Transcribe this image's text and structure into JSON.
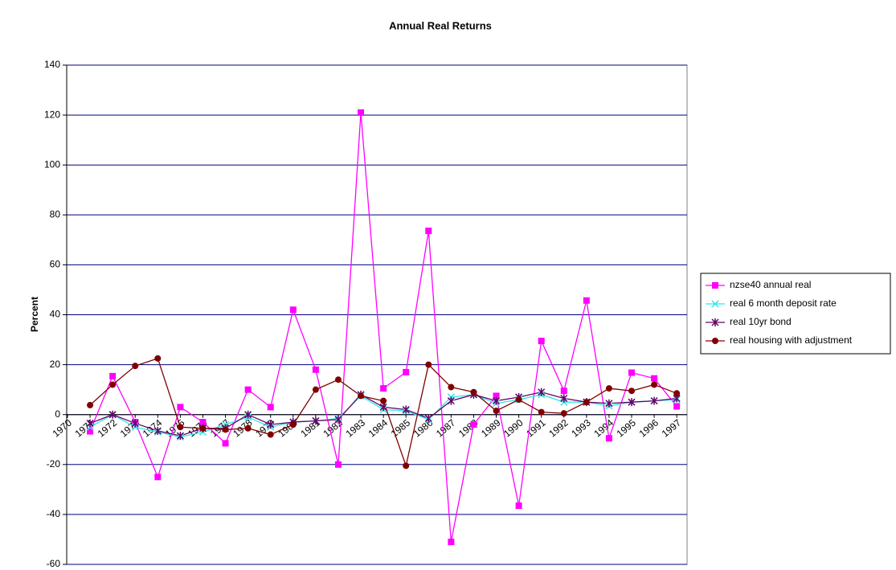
{
  "chart_data": {
    "type": "line",
    "title": "Annual Real Returns",
    "y_label": "Percent",
    "categories": [
      "1970",
      "1971",
      "1972",
      "1973",
      "1974",
      "1975",
      "1976",
      "1977",
      "1978",
      "1979",
      "1980",
      "1981",
      "1982",
      "1983",
      "1984",
      "1985",
      "1986",
      "1987",
      "1988",
      "1989",
      "1990",
      "1991",
      "1992",
      "1993",
      "1994",
      "1995",
      "1996",
      "1997"
    ],
    "series": [
      {
        "name": "nzse40 annual real",
        "color": "#ff00ff",
        "marker": "square",
        "values": [
          null,
          -6.7,
          15.4,
          -3,
          -25,
          3,
          -3,
          -11.5,
          10,
          3,
          42,
          18,
          -20,
          121,
          10.5,
          17,
          73.6,
          -51,
          -4,
          7.5,
          -36.5,
          29.5,
          9.5,
          45.7,
          -9.5,
          16.8,
          14.5,
          3.3
        ]
      },
      {
        "name": "real 6 month deposit rate",
        "color": "#33e6e6",
        "marker": "x",
        "values": [
          null,
          -5,
          0,
          -5,
          -7,
          -9,
          -7,
          -4,
          -1,
          -5,
          -3,
          -2.5,
          -1.5,
          7.5,
          2,
          1.5,
          -2,
          7,
          8,
          4.5,
          6,
          8,
          5,
          5,
          3.5,
          5,
          5.5,
          6
        ]
      },
      {
        "name": "real 10yr bond",
        "color": "#660066",
        "marker": "star",
        "values": [
          null,
          -3.5,
          0,
          -3.5,
          -6.5,
          -8.5,
          -5.5,
          -5.5,
          0,
          -4,
          -3,
          -2.5,
          -2,
          8,
          3,
          2,
          -1.5,
          5.5,
          8,
          5.5,
          7,
          9,
          6.5,
          5,
          4.5,
          5,
          5.5,
          6.5
        ]
      },
      {
        "name": "real housing with adjustment",
        "color": "#800000",
        "marker": "circle",
        "values": [
          null,
          3.8,
          12,
          19.5,
          22.5,
          -5,
          -5.5,
          -6,
          -5.5,
          -8,
          -4,
          10,
          14,
          7.5,
          5.5,
          -20.5,
          20,
          11,
          9,
          1.5,
          6,
          1,
          0.5,
          5,
          10.5,
          9.5,
          12,
          8.5
        ]
      }
    ],
    "ylim": [
      -60,
      140
    ],
    "yticks": [
      -60,
      -40,
      -20,
      0,
      20,
      40,
      60,
      80,
      100,
      120,
      140
    ],
    "grid": true,
    "legend": "right"
  }
}
